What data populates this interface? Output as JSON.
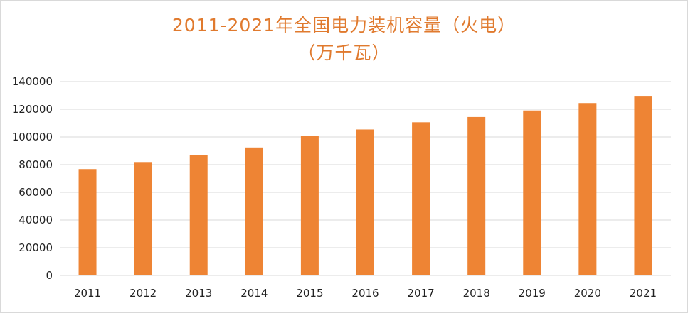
{
  "chart_data": {
    "type": "bar",
    "title_line1": "2011-2021年全国电力装机容量（火电）",
    "title_line2": "（万千瓦）",
    "categories": [
      "2011",
      "2012",
      "2013",
      "2014",
      "2015",
      "2016",
      "2017",
      "2018",
      "2019",
      "2020",
      "2021"
    ],
    "values": [
      76800,
      81900,
      87000,
      92400,
      100600,
      105400,
      110600,
      114400,
      119100,
      124500,
      129700
    ],
    "ylim": [
      0,
      140000
    ],
    "yticks": [
      "0",
      "20000",
      "40000",
      "60000",
      "80000",
      "100000",
      "120000",
      "140000"
    ],
    "grid": true,
    "bar_color": "#ee8434",
    "title_color": "#e07a2e"
  }
}
